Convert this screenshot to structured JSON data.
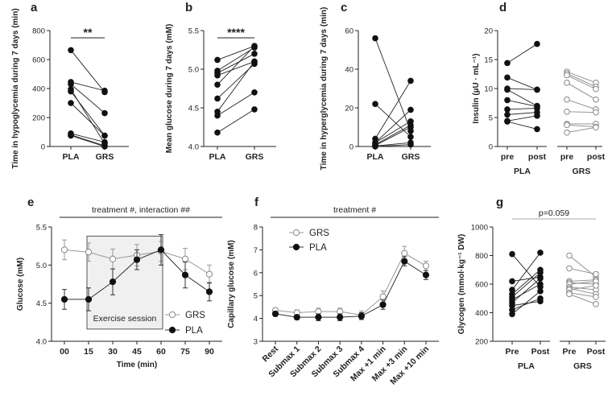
{
  "figure": {
    "chart_data": [
      {
        "id": "a",
        "type": "scatter",
        "paired": true,
        "categories": [
          "PLA",
          "GRS"
        ],
        "ylabel": "Time in hypoglycemia during 7 days (min)",
        "ylim": [
          0,
          800
        ],
        "yticks": [
          0,
          200,
          400,
          600,
          800
        ],
        "pairs": [
          [
            665,
            375
          ],
          [
            445,
            385
          ],
          [
            430,
            230
          ],
          [
            395,
            20
          ],
          [
            380,
            75
          ],
          [
            300,
            75
          ],
          [
            90,
            30
          ],
          [
            80,
            5
          ],
          [
            75,
            0
          ]
        ],
        "significance": "**"
      },
      {
        "id": "b",
        "type": "scatter",
        "paired": true,
        "categories": [
          "PLA",
          "GRS"
        ],
        "ylabel": "Mean glucose during 7 days (mM)",
        "ylim": [
          4.0,
          5.5
        ],
        "yticks": [
          "4.0",
          "4.5",
          "5.0",
          "5.5"
        ],
        "pairs": [
          [
            5.12,
            5.3
          ],
          [
            4.98,
            5.28
          ],
          [
            4.95,
            5.2
          ],
          [
            4.92,
            5.1
          ],
          [
            4.8,
            5.3
          ],
          [
            4.62,
            5.07
          ],
          [
            4.45,
            5.1
          ],
          [
            4.4,
            4.7
          ],
          [
            4.18,
            4.48
          ]
        ],
        "significance": "****"
      },
      {
        "id": "c",
        "type": "scatter",
        "paired": true,
        "categories": [
          "PLA",
          "GRS"
        ],
        "ylabel": "Time in hyperglycemia during 7 days (min)",
        "ylim": [
          0,
          60
        ],
        "yticks": [
          0,
          20,
          40,
          60
        ],
        "pairs": [
          [
            56,
            8
          ],
          [
            22,
            5
          ],
          [
            4,
            34
          ],
          [
            2,
            19
          ],
          [
            2,
            13
          ],
          [
            1,
            11
          ],
          [
            0.5,
            10
          ],
          [
            0.3,
            2
          ],
          [
            0,
            1
          ]
        ]
      },
      {
        "id": "d",
        "type": "scatter",
        "paired": true,
        "ylabel": "Insulin (µU · mL⁻¹)",
        "ylim": [
          0,
          20
        ],
        "yticks": [
          0,
          5,
          10,
          15,
          20
        ],
        "tick_labels": [
          "pre",
          "post",
          "pre",
          "post"
        ],
        "groups": [
          {
            "name": "PLA",
            "marker": "filled",
            "pairs": [
              [
                14.4,
                17.7
              ],
              [
                11.9,
                9.8
              ],
              [
                10.0,
                9.8
              ],
              [
                9.8,
                7.0
              ],
              [
                8.0,
                6.9
              ],
              [
                6.4,
                6.6
              ],
              [
                5.5,
                5.9
              ],
              [
                4.4,
                5.3
              ],
              [
                4.3,
                3.0
              ]
            ]
          },
          {
            "name": "GRS",
            "marker": "open",
            "pairs": [
              [
                12.9,
                11.0
              ],
              [
                12.6,
                10.3
              ],
              [
                12.3,
                9.9
              ],
              [
                11.0,
                8.1
              ],
              [
                8.1,
                6.4
              ],
              [
                6.0,
                5.9
              ],
              [
                3.9,
                3.9
              ],
              [
                3.7,
                3.4
              ],
              [
                2.4,
                3.3
              ]
            ]
          }
        ]
      },
      {
        "id": "e",
        "type": "line",
        "title": "treatment #, interaction ##",
        "xlabel": "Time (min)",
        "ylabel": "Glucose (mM)",
        "categories": [
          "00",
          "15",
          "30",
          "45",
          "60",
          "75",
          "90"
        ],
        "ylim": [
          4.0,
          5.5
        ],
        "yticks": [
          "4.0",
          "4.5",
          "5.0",
          "5.5"
        ],
        "annotation": "Exercise session",
        "shaded_range": [
          "15",
          "60"
        ],
        "series": [
          {
            "name": "GRS",
            "marker": "open",
            "values": [
              5.2,
              5.17,
              5.08,
              5.13,
              5.18,
              5.08,
              4.88
            ],
            "errors": [
              0.13,
              0.12,
              0.13,
              0.14,
              0.13,
              0.14,
              0.12
            ]
          },
          {
            "name": "PLA",
            "marker": "filled",
            "values": [
              4.55,
              4.55,
              4.78,
              5.07,
              5.2,
              4.87,
              4.65
            ],
            "errors": [
              0.13,
              0.15,
              0.17,
              0.13,
              0.2,
              0.17,
              0.12
            ]
          }
        ]
      },
      {
        "id": "f",
        "type": "line",
        "title": "treatment #",
        "ylabel": "Capillary glucose (mM)",
        "categories": [
          "Rest",
          "Submax 1",
          "Submax 2",
          "Submax 3",
          "Submax 4",
          "Max +1 min",
          "Max +3 min",
          "Max +10 min"
        ],
        "ylim": [
          3,
          8
        ],
        "yticks": [
          3,
          4,
          5,
          6,
          7,
          8
        ],
        "series": [
          {
            "name": "GRS",
            "marker": "open",
            "values": [
              4.35,
              4.25,
              4.3,
              4.3,
              4.15,
              4.95,
              6.85,
              6.3
            ],
            "errors": [
              0.1,
              0.12,
              0.15,
              0.15,
              0.18,
              0.25,
              0.3,
              0.2
            ]
          },
          {
            "name": "PLA",
            "marker": "filled",
            "values": [
              4.2,
              4.05,
              4.05,
              4.05,
              4.1,
              4.6,
              6.5,
              5.9
            ],
            "errors": [
              0.1,
              0.1,
              0.15,
              0.15,
              0.15,
              0.2,
              0.2,
              0.2
            ]
          }
        ]
      },
      {
        "id": "g",
        "type": "scatter",
        "paired": true,
        "ylabel": "Glycogen (mmol·kg⁻¹ DW)",
        "ylim": [
          200,
          1000
        ],
        "yticks": [
          200,
          400,
          600,
          800,
          1000
        ],
        "tick_labels": [
          "Pre",
          "Post",
          "Pre",
          "Post"
        ],
        "significance": "p=0.059",
        "groups": [
          {
            "name": "PLA",
            "marker": "filled",
            "pairs": [
              [
                810,
                580
              ],
              [
                620,
                650
              ],
              [
                560,
                820
              ],
              [
                530,
                700
              ],
              [
                510,
                680
              ],
              [
                490,
                600
              ],
              [
                470,
                640
              ],
              [
                450,
                480
              ],
              [
                420,
                500
              ],
              [
                390,
                550
              ]
            ]
          },
          {
            "name": "GRS",
            "marker": "open",
            "pairs": [
              [
                800,
                650
              ],
              [
                710,
                670
              ],
              [
                620,
                630
              ],
              [
                610,
                600
              ],
              [
                600,
                620
              ],
              [
                580,
                560
              ],
              [
                570,
                530
              ],
              [
                560,
                590
              ],
              [
                540,
                510
              ],
              [
                530,
                460
              ]
            ]
          }
        ]
      }
    ]
  }
}
